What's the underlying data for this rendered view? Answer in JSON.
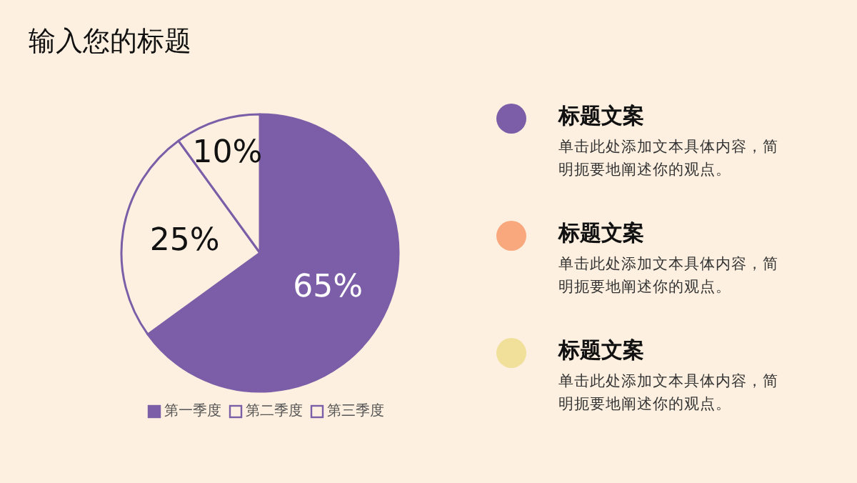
{
  "chart_data": [
    {
      "type": "pie",
      "title": "输入您的标题",
      "categories": [
        "第一季度",
        "第二季度",
        "第三季度"
      ],
      "values": [
        65,
        25,
        10
      ],
      "value_labels": [
        "65%",
        "25%",
        "10%"
      ],
      "colors": [
        "#7b5ea7",
        "#fdf0e0",
        "#fdf0e0"
      ],
      "legend": "bottom"
    },
    {
      "type": "other",
      "annotations": [
        "标题文案",
        "单击此处添加文本具体内容，简明扼要地阐述你的观点。",
        "标题文案",
        "单击此处添加文本具体内容，简明扼要地阐述你的观点。",
        "标题文案",
        "单击此处添加文本具体内容，简明扼要地阐述你的观点。"
      ]
    }
  ]
}
